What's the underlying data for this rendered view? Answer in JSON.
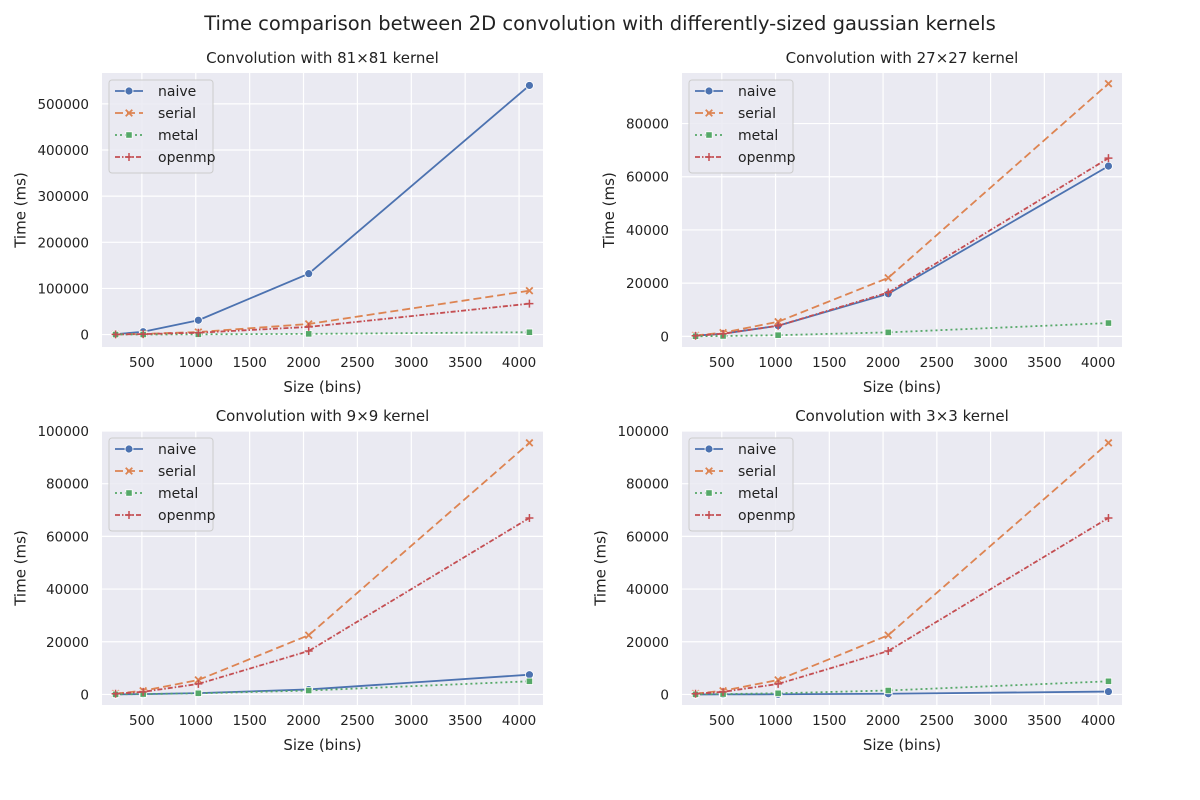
{
  "figure": {
    "title": "Time comparison between 2D convolution with differently-sized gaussian kernels"
  },
  "colors": {
    "background": "#EAEAF2",
    "grid": "#FFFFFF",
    "naive": "#4C72B0",
    "serial": "#DD8452",
    "metal": "#55A868",
    "openmp": "#C44E52"
  },
  "chart_data": [
    {
      "type": "line",
      "title": "Convolution with 81×81 kernel",
      "xlabel": "Size (bins)",
      "ylabel": "Time (ms)",
      "x": [
        256,
        512,
        1024,
        2048,
        4096
      ],
      "xticks": [
        500,
        1000,
        1500,
        2000,
        2500,
        3000,
        3500,
        4000
      ],
      "xlim": [
        130,
        4222
      ],
      "yticks": [
        0,
        100000,
        200000,
        300000,
        400000,
        500000
      ],
      "ylim": [
        -27000,
        567000
      ],
      "grid": true,
      "legend_position": "upper-left",
      "series": [
        {
          "name": "naive",
          "values": [
            800,
            6000,
            31000,
            132000,
            540000
          ]
        },
        {
          "name": "serial",
          "values": [
            350,
            1400,
            5500,
            23000,
            95000
          ]
        },
        {
          "name": "metal",
          "values": [
            40,
            150,
            450,
            1500,
            5000
          ]
        },
        {
          "name": "openmp",
          "values": [
            250,
            1000,
            4000,
            16500,
            67000
          ]
        }
      ]
    },
    {
      "type": "line",
      "title": "Convolution with 27×27 kernel",
      "xlabel": "Size (bins)",
      "ylabel": "Time (ms)",
      "x": [
        256,
        512,
        1024,
        2048,
        4096
      ],
      "xticks": [
        500,
        1000,
        1500,
        2000,
        2500,
        3000,
        3500,
        4000
      ],
      "xlim": [
        130,
        4222
      ],
      "yticks": [
        0,
        20000,
        40000,
        60000,
        80000
      ],
      "ylim": [
        -4000,
        99000
      ],
      "grid": true,
      "legend_position": "upper-left",
      "series": [
        {
          "name": "naive",
          "values": [
            250,
            1000,
            4000,
            16000,
            64000
          ]
        },
        {
          "name": "serial",
          "values": [
            350,
            1400,
            5500,
            22000,
            95000
          ]
        },
        {
          "name": "metal",
          "values": [
            40,
            150,
            450,
            1500,
            5000
          ]
        },
        {
          "name": "openmp",
          "values": [
            250,
            1000,
            4000,
            16500,
            67000
          ]
        }
      ]
    },
    {
      "type": "line",
      "title": "Convolution with 9×9 kernel",
      "xlabel": "Size (bins)",
      "ylabel": "Time (ms)",
      "x": [
        256,
        512,
        1024,
        2048,
        4096
      ],
      "xticks": [
        500,
        1000,
        1500,
        2000,
        2500,
        3000,
        3500,
        4000
      ],
      "xlim": [
        130,
        4222
      ],
      "yticks": [
        0,
        20000,
        40000,
        60000,
        80000,
        100000
      ],
      "ylim": [
        -4000,
        100000
      ],
      "grid": true,
      "legend_position": "upper-left",
      "series": [
        {
          "name": "naive",
          "values": [
            30,
            120,
            500,
            1900,
            7500
          ]
        },
        {
          "name": "serial",
          "values": [
            350,
            1400,
            5500,
            22500,
            95500
          ]
        },
        {
          "name": "metal",
          "values": [
            40,
            150,
            450,
            1500,
            5000
          ]
        },
        {
          "name": "openmp",
          "values": [
            250,
            1000,
            4000,
            16500,
            67000
          ]
        }
      ]
    },
    {
      "type": "line",
      "title": "Convolution with 3×3 kernel",
      "xlabel": "Size (bins)",
      "ylabel": "Time (ms)",
      "x": [
        256,
        512,
        1024,
        2048,
        4096
      ],
      "xticks": [
        500,
        1000,
        1500,
        2000,
        2500,
        3000,
        3500,
        4000
      ],
      "xlim": [
        130,
        4222
      ],
      "yticks": [
        0,
        20000,
        40000,
        60000,
        80000,
        100000
      ],
      "ylim": [
        -4000,
        100000
      ],
      "grid": true,
      "legend_position": "upper-left",
      "series": [
        {
          "name": "naive",
          "values": [
            5,
            20,
            70,
            280,
            1100
          ]
        },
        {
          "name": "serial",
          "values": [
            350,
            1400,
            5500,
            22500,
            95500
          ]
        },
        {
          "name": "metal",
          "values": [
            40,
            150,
            450,
            1500,
            5000
          ]
        },
        {
          "name": "openmp",
          "values": [
            250,
            1000,
            4000,
            16500,
            67000
          ]
        }
      ]
    }
  ]
}
